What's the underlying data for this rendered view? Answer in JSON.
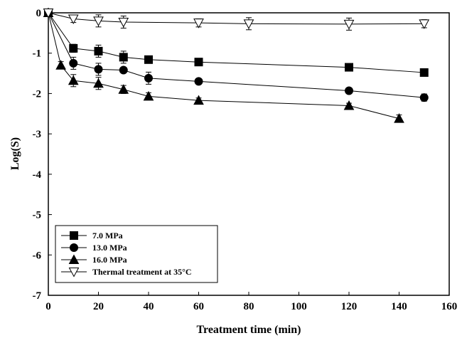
{
  "chart_data": {
    "type": "line",
    "title": "",
    "xlabel": "Treatment time (min)",
    "ylabel": "Log(S)",
    "xlim": [
      0,
      160
    ],
    "ylim": [
      -7,
      0
    ],
    "xticks": [
      0,
      20,
      40,
      60,
      80,
      100,
      120,
      140,
      160
    ],
    "yticks": [
      0,
      -1,
      -2,
      -3,
      -4,
      -5,
      -6,
      -7
    ],
    "grid": false,
    "legend_position": "bottom-left",
    "series": [
      {
        "name": "7.0 MPa",
        "marker": "square",
        "x": [
          0,
          10,
          20,
          30,
          40,
          60,
          120,
          150
        ],
        "y": [
          0,
          -0.88,
          -0.95,
          -1.1,
          -1.16,
          -1.22,
          -1.35,
          -1.48
        ],
        "err": [
          0.04,
          0.1,
          0.15,
          0.15,
          0.09,
          0.09,
          0.06,
          0.06
        ]
      },
      {
        "name": "13.0 MPa",
        "marker": "circle",
        "x": [
          0,
          10,
          20,
          30,
          40,
          60,
          120,
          150
        ],
        "y": [
          0,
          -1.25,
          -1.4,
          -1.42,
          -1.62,
          -1.7,
          -1.93,
          -2.1
        ],
        "err": [
          0.04,
          0.15,
          0.15,
          0.06,
          0.15,
          0.06,
          0.04,
          0.09
        ]
      },
      {
        "name": "16.0 MPa",
        "marker": "triangle-up",
        "x": [
          0,
          5,
          10,
          20,
          30,
          40,
          60,
          120,
          140
        ],
        "y": [
          0,
          -1.3,
          -1.68,
          -1.75,
          -1.9,
          -2.07,
          -2.17,
          -2.3,
          -2.62
        ],
        "err": [
          0.04,
          0.09,
          0.15,
          0.15,
          0.1,
          0.09,
          0.06,
          0.06,
          0.09
        ]
      },
      {
        "name": "Thermal treatment at 35°C",
        "marker": "triangle-down-open",
        "x": [
          0,
          10,
          20,
          30,
          60,
          80,
          120,
          150
        ],
        "y": [
          0,
          -0.15,
          -0.2,
          -0.23,
          -0.25,
          -0.27,
          -0.28,
          -0.27
        ],
        "err": [
          0.04,
          0.09,
          0.15,
          0.15,
          0.1,
          0.15,
          0.15,
          0.1
        ]
      }
    ]
  }
}
